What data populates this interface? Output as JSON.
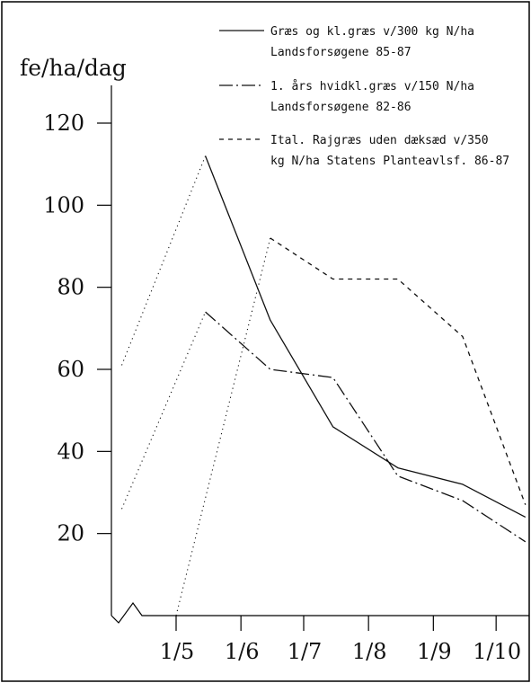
{
  "chart_data": {
    "type": "line",
    "ylabel": "fe/ha/dag",
    "xlabel": "",
    "ylim": [
      0,
      120
    ],
    "y_ticks": [
      20,
      40,
      60,
      80,
      100,
      120
    ],
    "x_tick_labels": [
      "1/5",
      "1/6",
      "1/7",
      "1/8",
      "1/9",
      "1/10"
    ],
    "grid": false,
    "legend_position": "top-right",
    "series": [
      {
        "name_lines": [
          "Græs og kl.græs v/300 kg N/ha",
          "Landsforsøgene 85-87"
        ],
        "style": "solid",
        "points": [
          [
            "15/5",
            112
          ],
          [
            "15/6",
            72
          ],
          [
            "15/7",
            46
          ],
          [
            "15/8",
            36
          ],
          [
            "15/9",
            32
          ],
          [
            "15/10",
            24
          ]
        ]
      },
      {
        "name_lines": [
          "1. års hvidkl.græs v/150 N/ha",
          "Landsforsøgene 82-86"
        ],
        "style": "dashdot",
        "points": [
          [
            "15/5",
            74
          ],
          [
            "15/6",
            60
          ],
          [
            "15/7",
            58
          ],
          [
            "15/8",
            34
          ],
          [
            "15/9",
            28
          ],
          [
            "15/10",
            18
          ]
        ]
      },
      {
        "name_lines": [
          "Ital. Rajgræs uden dæksæd v/350",
          "kg N/ha Statens Planteavlsf. 86-87"
        ],
        "style": "dashed",
        "points": [
          [
            "15/6",
            92
          ],
          [
            "15/7",
            82
          ],
          [
            "15/8",
            82
          ],
          [
            "15/9",
            68
          ],
          [
            "15/10",
            27
          ]
        ]
      },
      {
        "name_lines": [],
        "style": "dotted",
        "points": [
          [
            "5/4",
            61
          ],
          [
            "15/5",
            112
          ]
        ]
      },
      {
        "name_lines": [],
        "style": "dotted",
        "points": [
          [
            "5/4",
            26
          ],
          [
            "15/5",
            74
          ]
        ]
      },
      {
        "name_lines": [],
        "style": "dotted",
        "points": [
          [
            "1/5",
            0
          ],
          [
            "15/6",
            92
          ]
        ]
      }
    ]
  }
}
